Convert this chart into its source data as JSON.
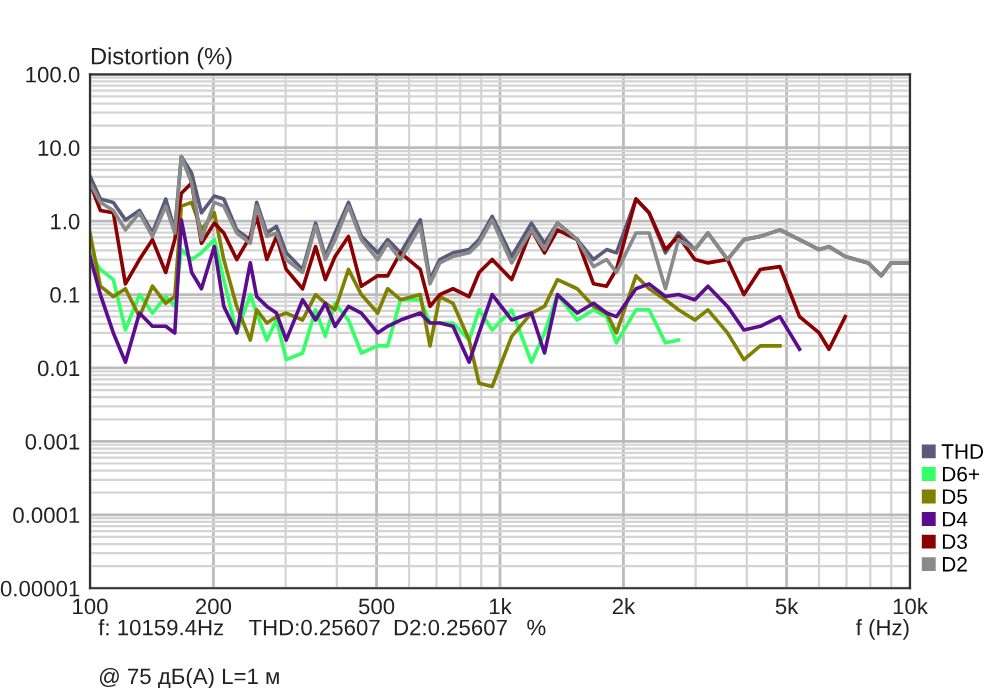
{
  "chart_data": {
    "type": "line",
    "ylabel": "Distortion (%)",
    "xlabel": "f (Hz)",
    "annotations": [
      "f: 10159.4Hz    THD:0.25607  D2:0.25607   %",
      "@ 75 дБ(A) L=1 м"
    ],
    "log": "xy",
    "grid": true,
    "legend": "right",
    "line_style": "solid",
    "marker": "none",
    "xlim": [
      100,
      10000
    ],
    "ylim": [
      1e-05,
      100
    ],
    "xticks": [
      100,
      200,
      500,
      {
        "value": 1000,
        "label": "1k"
      },
      {
        "value": 2000,
        "label": "2k"
      },
      {
        "value": 5000,
        "label": "5k"
      },
      {
        "value": 10000,
        "label": "10k"
      }
    ],
    "yticks": [
      {
        "value": 100,
        "label": "100.0"
      },
      {
        "value": 10,
        "label": "10.0"
      },
      {
        "value": 1,
        "label": "1.0"
      },
      0.1,
      0.01,
      0.001,
      0.0001,
      {
        "value": 1e-05,
        "label": "0.00001"
      }
    ],
    "x": [
      100,
      106,
      114,
      122,
      132,
      142,
      153,
      161,
      167,
      177,
      187,
      201,
      212,
      228,
      246,
      255,
      270,
      285,
      301,
      330,
      355,
      375,
      396,
      427,
      459,
      503,
      532,
      572,
      639,
      675,
      713,
      768,
      841,
      889,
      957,
      1068,
      1193,
      1284,
      1381,
      1543,
      1691,
      1820,
      1923,
      2146,
      2310,
      2532,
      2725,
      2987,
      3215,
      3589,
      3934,
      4313,
      4816,
      5377,
      6004,
      6345,
      6951,
      7906,
      8507,
      8988,
      9853
    ],
    "series": [
      {
        "name": "THD",
        "color": "#5a5a7a",
        "values": [
          4.1,
          2.0,
          1.8,
          1.04,
          1.4,
          0.69,
          2.0,
          0.76,
          7.6,
          4.5,
          1.3,
          2.2,
          2.0,
          0.76,
          0.56,
          1.8,
          0.69,
          0.85,
          0.37,
          0.22,
          0.94,
          0.33,
          0.69,
          1.8,
          0.62,
          0.37,
          0.56,
          0.37,
          1.04,
          0.16,
          0.3,
          0.37,
          0.41,
          0.56,
          1.16,
          0.33,
          0.94,
          0.5,
          0.94,
          0.56,
          0.3,
          0.41,
          0.37,
          2.0,
          1.3,
          0.37,
          0.69,
          0.41,
          0.69,
          0.3,
          0.56,
          0.62,
          0.76,
          0.56,
          0.41,
          0.45,
          0.33,
          0.27,
          0.18,
          0.27,
          0.27
        ]
      },
      {
        "name": "D6+",
        "color": "#33ff66",
        "values": [
          0.37,
          0.22,
          0.16,
          0.033,
          0.1,
          0.056,
          0.094,
          0.069,
          0.41,
          0.3,
          0.37,
          0.56,
          0.16,
          0.03,
          0.1,
          0.056,
          0.024,
          0.045,
          0.013,
          0.016,
          0.062,
          0.027,
          0.076,
          0.045,
          0.016,
          0.02,
          0.02,
          0.085,
          0.085,
          0.041,
          0.041,
          0.041,
          0.024,
          0.062,
          0.033,
          0.062,
          0.012,
          0.03,
          0.1,
          0.045,
          0.062,
          0.05,
          0.022,
          0.062,
          0.062,
          0.022,
          0.024,
          null,
          null,
          null,
          null,
          null,
          null,
          null,
          null,
          null,
          null,
          null,
          null,
          null,
          null
        ]
      },
      {
        "name": "D5",
        "color": "#808000",
        "values": [
          0.69,
          0.13,
          0.094,
          0.12,
          0.05,
          0.13,
          0.076,
          0.094,
          1.6,
          1.8,
          0.76,
          1.3,
          0.3,
          0.069,
          0.024,
          0.062,
          0.041,
          0.05,
          0.056,
          0.045,
          0.1,
          0.076,
          0.062,
          0.22,
          0.1,
          0.056,
          0.12,
          0.085,
          0.1,
          0.02,
          0.094,
          0.076,
          0.024,
          0.0062,
          0.0056,
          0.027,
          0.056,
          0.069,
          0.16,
          0.12,
          0.069,
          0.056,
          0.03,
          0.18,
          0.12,
          0.085,
          0.062,
          0.045,
          0.062,
          0.03,
          0.013,
          0.02,
          0.02,
          null,
          null,
          null,
          null,
          null,
          null,
          null,
          null
        ]
      },
      {
        "name": "D4",
        "color": "#5a0d8c",
        "values": [
          0.33,
          0.1,
          0.03,
          0.012,
          0.056,
          0.037,
          0.037,
          0.03,
          1.04,
          0.2,
          0.12,
          0.45,
          0.069,
          0.03,
          0.27,
          0.094,
          0.069,
          0.056,
          0.024,
          0.085,
          0.045,
          0.076,
          0.037,
          0.069,
          0.056,
          0.03,
          0.037,
          0.045,
          0.056,
          0.041,
          0.041,
          0.037,
          0.012,
          0.03,
          0.1,
          0.045,
          0.056,
          0.016,
          0.1,
          0.056,
          0.076,
          0.056,
          0.05,
          0.12,
          0.14,
          0.094,
          0.1,
          0.085,
          0.13,
          0.069,
          0.033,
          0.037,
          0.05,
          0.018,
          null,
          null,
          null,
          null,
          null,
          null,
          null
        ]
      },
      {
        "name": "D3",
        "color": "#8b0000",
        "values": [
          3.3,
          1.4,
          1.3,
          0.14,
          0.3,
          0.56,
          0.2,
          0.56,
          2.4,
          3.3,
          0.5,
          0.94,
          0.69,
          0.3,
          0.62,
          1.16,
          0.3,
          0.62,
          0.22,
          0.12,
          0.45,
          0.16,
          0.33,
          0.62,
          0.13,
          0.18,
          0.18,
          0.37,
          0.22,
          0.069,
          0.1,
          0.12,
          0.094,
          0.2,
          0.3,
          0.16,
          0.76,
          0.37,
          0.76,
          0.56,
          0.14,
          0.13,
          0.22,
          2.0,
          1.3,
          0.41,
          0.62,
          0.3,
          0.27,
          0.3,
          0.1,
          0.22,
          0.24,
          0.05,
          0.03,
          0.018,
          0.05,
          null,
          null,
          null,
          null
        ]
      },
      {
        "name": "D2",
        "color": "#8a8a8a",
        "values": [
          3.3,
          1.8,
          1.4,
          0.76,
          1.3,
          0.62,
          1.6,
          0.69,
          7.6,
          3.3,
          0.56,
          1.8,
          1.6,
          0.69,
          0.5,
          1.6,
          0.62,
          0.69,
          0.3,
          0.2,
          0.85,
          0.3,
          0.56,
          1.6,
          0.56,
          0.3,
          0.5,
          0.3,
          0.85,
          0.14,
          0.27,
          0.33,
          0.37,
          0.5,
          1.04,
          0.27,
          0.76,
          0.41,
          0.94,
          0.56,
          0.24,
          0.3,
          0.2,
          0.69,
          0.69,
          0.12,
          0.56,
          0.41,
          0.69,
          0.3,
          0.56,
          0.62,
          0.76,
          0.56,
          0.41,
          0.45,
          0.33,
          0.27,
          0.18,
          0.27,
          0.27
        ]
      }
    ]
  }
}
